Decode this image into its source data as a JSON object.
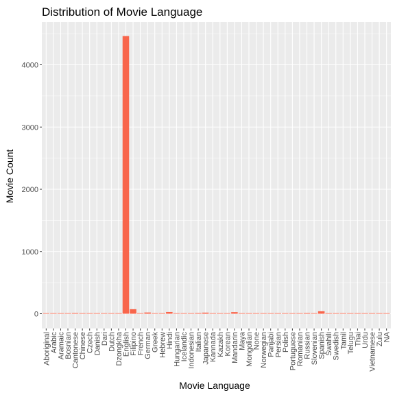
{
  "chart_data": {
    "type": "bar",
    "title": "Distribution of Movie Language",
    "xlabel": "Movie Language",
    "ylabel": "Movie Count",
    "ylim": [
      0,
      4750
    ],
    "yticks": [
      0,
      1000,
      2000,
      3000,
      4000
    ],
    "grid": true,
    "legend": "none",
    "bar_color": "#F8654B",
    "panel_color": "#EBEBEB",
    "grid_color": "#FFFFFF",
    "categories": [
      "Aboriginal",
      "Arabic",
      "Aramaic",
      "Bosnian",
      "Cantonese",
      "Chinese",
      "Czech",
      "Danish",
      "Dari",
      "Dutch",
      "Dzongkha",
      "English",
      "Filipino",
      "French",
      "German",
      "Greek",
      "Hebrew",
      "Hindi",
      "Hungarian",
      "Icelandic",
      "Indonesian",
      "Italian",
      "Japanese",
      "Kannada",
      "Kazakh",
      "Korean",
      "Mandarin",
      "Maya",
      "Mongolian",
      "None",
      "Norwegian",
      "Panjabi",
      "Persian",
      "Polish",
      "Portuguese",
      "Romanian",
      "Russian",
      "Slovenian",
      "Spanish",
      "Swahili",
      "Swedish",
      "Tamil",
      "Telugu",
      "Thai",
      "Urdu",
      "Vietnamese",
      "Zulu",
      "NA"
    ],
    "values": [
      2,
      1,
      1,
      1,
      11,
      3,
      1,
      5,
      2,
      4,
      1,
      4462,
      73,
      1,
      20,
      1,
      5,
      28,
      1,
      1,
      2,
      11,
      18,
      2,
      1,
      8,
      26,
      1,
      1,
      2,
      4,
      1,
      4,
      3,
      8,
      2,
      11,
      1,
      40,
      1,
      5,
      1,
      5,
      1,
      1,
      1,
      2,
      4
    ]
  }
}
